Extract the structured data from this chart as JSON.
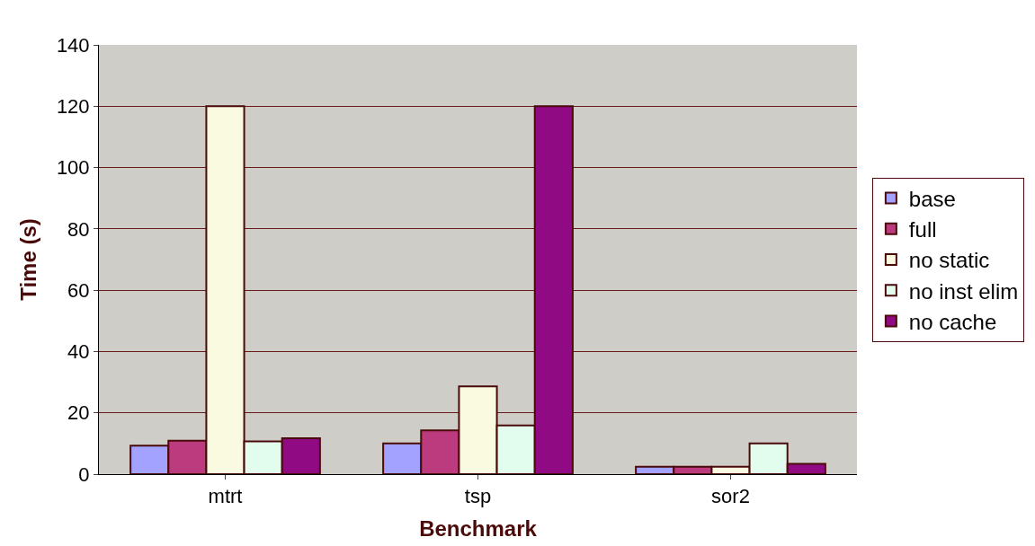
{
  "chart_data": {
    "type": "bar",
    "xlabel": "Benchmark",
    "ylabel": "Time (s)",
    "categories": [
      "mtrt",
      "tsp",
      "sor2"
    ],
    "series": [
      {
        "name": "base",
        "color": "#a3a3ff",
        "values": [
          9.3,
          10,
          2.4
        ]
      },
      {
        "name": "full",
        "color": "#bc3a7e",
        "values": [
          10.9,
          14.3,
          2.4
        ]
      },
      {
        "name": "no static",
        "color": "#fafae0",
        "values": [
          120,
          28.6,
          2.4
        ]
      },
      {
        "name": "no inst elim",
        "color": "#e2fdee",
        "values": [
          10.7,
          15.9,
          10
        ]
      },
      {
        "name": "no cache",
        "color": "#900a84",
        "values": [
          11.7,
          120,
          3.4
        ]
      }
    ],
    "ylim": [
      0,
      140
    ],
    "yticks": [
      0,
      20,
      40,
      60,
      80,
      100,
      120,
      140
    ],
    "grid": "y",
    "legend": "right"
  }
}
